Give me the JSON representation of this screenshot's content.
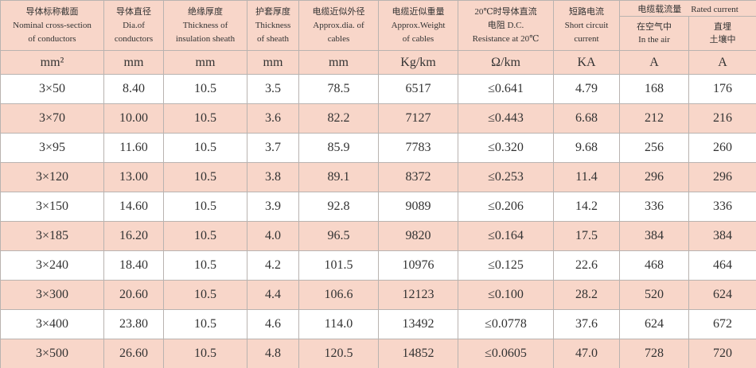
{
  "table": {
    "header": {
      "columns": [
        [
          "导体标称截面",
          "Nominal cross-section",
          "of conductors"
        ],
        [
          "导体直径",
          "Dia.of",
          "conductors"
        ],
        [
          "绝缘厚度",
          "Thickness of",
          "insulation sheath"
        ],
        [
          "护套厚度",
          "Thickness",
          "of sheath"
        ],
        [
          "电缆近似外径",
          "Approx.dia. of",
          "cables"
        ],
        [
          "电缆近似重量",
          "Approx.Weight",
          "of cables"
        ],
        [
          "20℃时导体直流",
          "电阻 D.C.",
          "Resistance at 20℃"
        ],
        [
          "短路电流",
          "Short circuit",
          "current"
        ]
      ],
      "group": [
        "电缆载流量",
        "Rated current"
      ],
      "sub": [
        [
          "在空气中",
          "In the air"
        ],
        [
          "直埋",
          "土壤中"
        ]
      ]
    },
    "units": [
      "mm²",
      "mm",
      "mm",
      "mm",
      "mm",
      "Kg/km",
      "Ω/km",
      "KA",
      "A",
      "A"
    ],
    "rows": [
      [
        "3×50",
        "8.40",
        "10.5",
        "3.5",
        "78.5",
        "6517",
        "≤0.641",
        "4.79",
        "168",
        "176"
      ],
      [
        "3×70",
        "10.00",
        "10.5",
        "3.6",
        "82.2",
        "7127",
        "≤0.443",
        "6.68",
        "212",
        "216"
      ],
      [
        "3×95",
        "11.60",
        "10.5",
        "3.7",
        "85.9",
        "7783",
        "≤0.320",
        "9.68",
        "256",
        "260"
      ],
      [
        "3×120",
        "13.00",
        "10.5",
        "3.8",
        "89.1",
        "8372",
        "≤0.253",
        "11.4",
        "296",
        "296"
      ],
      [
        "3×150",
        "14.60",
        "10.5",
        "3.9",
        "92.8",
        "9089",
        "≤0.206",
        "14.2",
        "336",
        "336"
      ],
      [
        "3×185",
        "16.20",
        "10.5",
        "4.0",
        "96.5",
        "9820",
        "≤0.164",
        "17.5",
        "384",
        "384"
      ],
      [
        "3×240",
        "18.40",
        "10.5",
        "4.2",
        "101.5",
        "10976",
        "≤0.125",
        "22.6",
        "468",
        "464"
      ],
      [
        "3×300",
        "20.60",
        "10.5",
        "4.4",
        "106.6",
        "12123",
        "≤0.100",
        "28.2",
        "520",
        "624"
      ],
      [
        "3×400",
        "23.80",
        "10.5",
        "4.6",
        "114.0",
        "13492",
        "≤0.0778",
        "37.6",
        "624",
        "672"
      ],
      [
        "3×500",
        "26.60",
        "10.5",
        "4.8",
        "120.5",
        "14852",
        "≤0.0605",
        "47.0",
        "728",
        "720"
      ]
    ]
  }
}
